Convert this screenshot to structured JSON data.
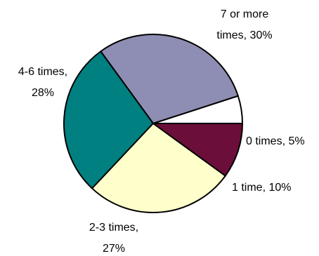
{
  "chart_data": {
    "type": "pie",
    "title": "",
    "start_angle_deg": 0,
    "direction": "counterclockwise",
    "slices": [
      {
        "label": "0 times",
        "value": 5,
        "display": "0 times, 5%",
        "label_lines": [
          "0 times, 5%"
        ],
        "color": "#ffffff"
      },
      {
        "label": "7 or more times",
        "value": 30,
        "display": "7 or more times, 30%",
        "label_lines": [
          "7 or more",
          "times, 30%"
        ],
        "color": "#8e8eb4"
      },
      {
        "label": "4-6 times",
        "value": 28,
        "display": "4-6 times, 28%",
        "label_lines": [
          "4-6 times,",
          "28%"
        ],
        "color": "#008080"
      },
      {
        "label": "2-3 times",
        "value": 27,
        "display": "2-3 times, 27%",
        "label_lines": [
          "2-3 times,",
          "27%"
        ],
        "color": "#ffffcc"
      },
      {
        "label": "1 time",
        "value": 10,
        "display": "1 time, 10%",
        "label_lines": [
          "1 time, 10%"
        ],
        "color": "#6b0f3a"
      }
    ],
    "legend": "none"
  }
}
